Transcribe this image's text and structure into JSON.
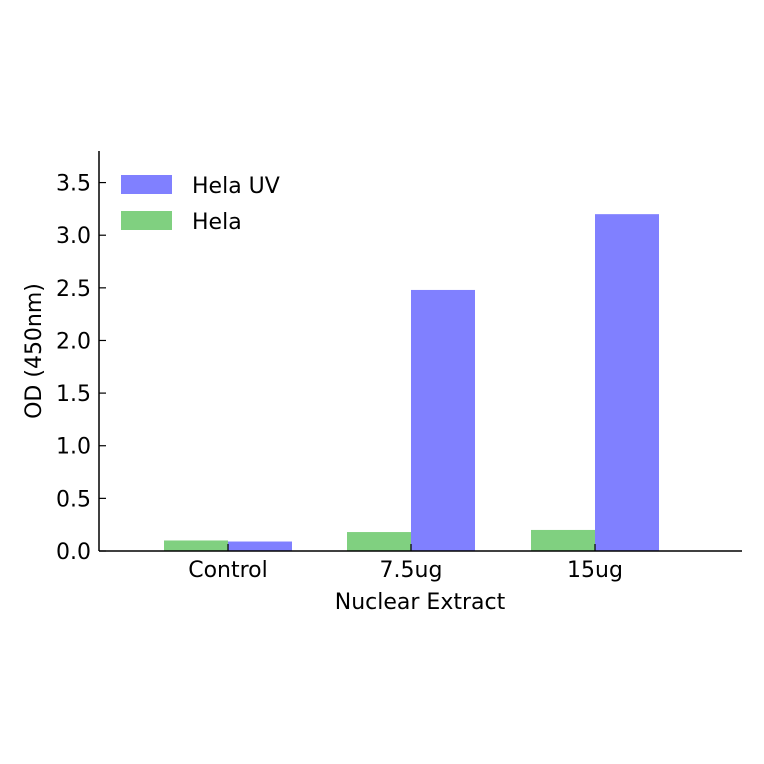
{
  "chart_data": {
    "type": "bar",
    "title": "",
    "xlabel": "Nuclear Extract",
    "ylabel": "OD (450nm)",
    "categories": [
      "Control",
      "7.5ug",
      "15ug"
    ],
    "ylim": [
      0,
      3.8
    ],
    "yticks": [
      "0.0",
      "0.5",
      "1.0",
      "1.5",
      "2.0",
      "2.5",
      "3.0",
      "3.5"
    ],
    "series": [
      {
        "name": "Hela",
        "color": "#80d080",
        "values": [
          0.1,
          0.18,
          0.2
        ]
      },
      {
        "name": "Hela UV",
        "color": "#8080ff",
        "values": [
          0.09,
          2.48,
          3.2
        ]
      }
    ],
    "legend": {
      "position": "top-left",
      "entries": [
        {
          "label": "Hela UV",
          "color": "#8080ff"
        },
        {
          "label": "Hela",
          "color": "#80d080"
        }
      ]
    },
    "grid": false
  }
}
